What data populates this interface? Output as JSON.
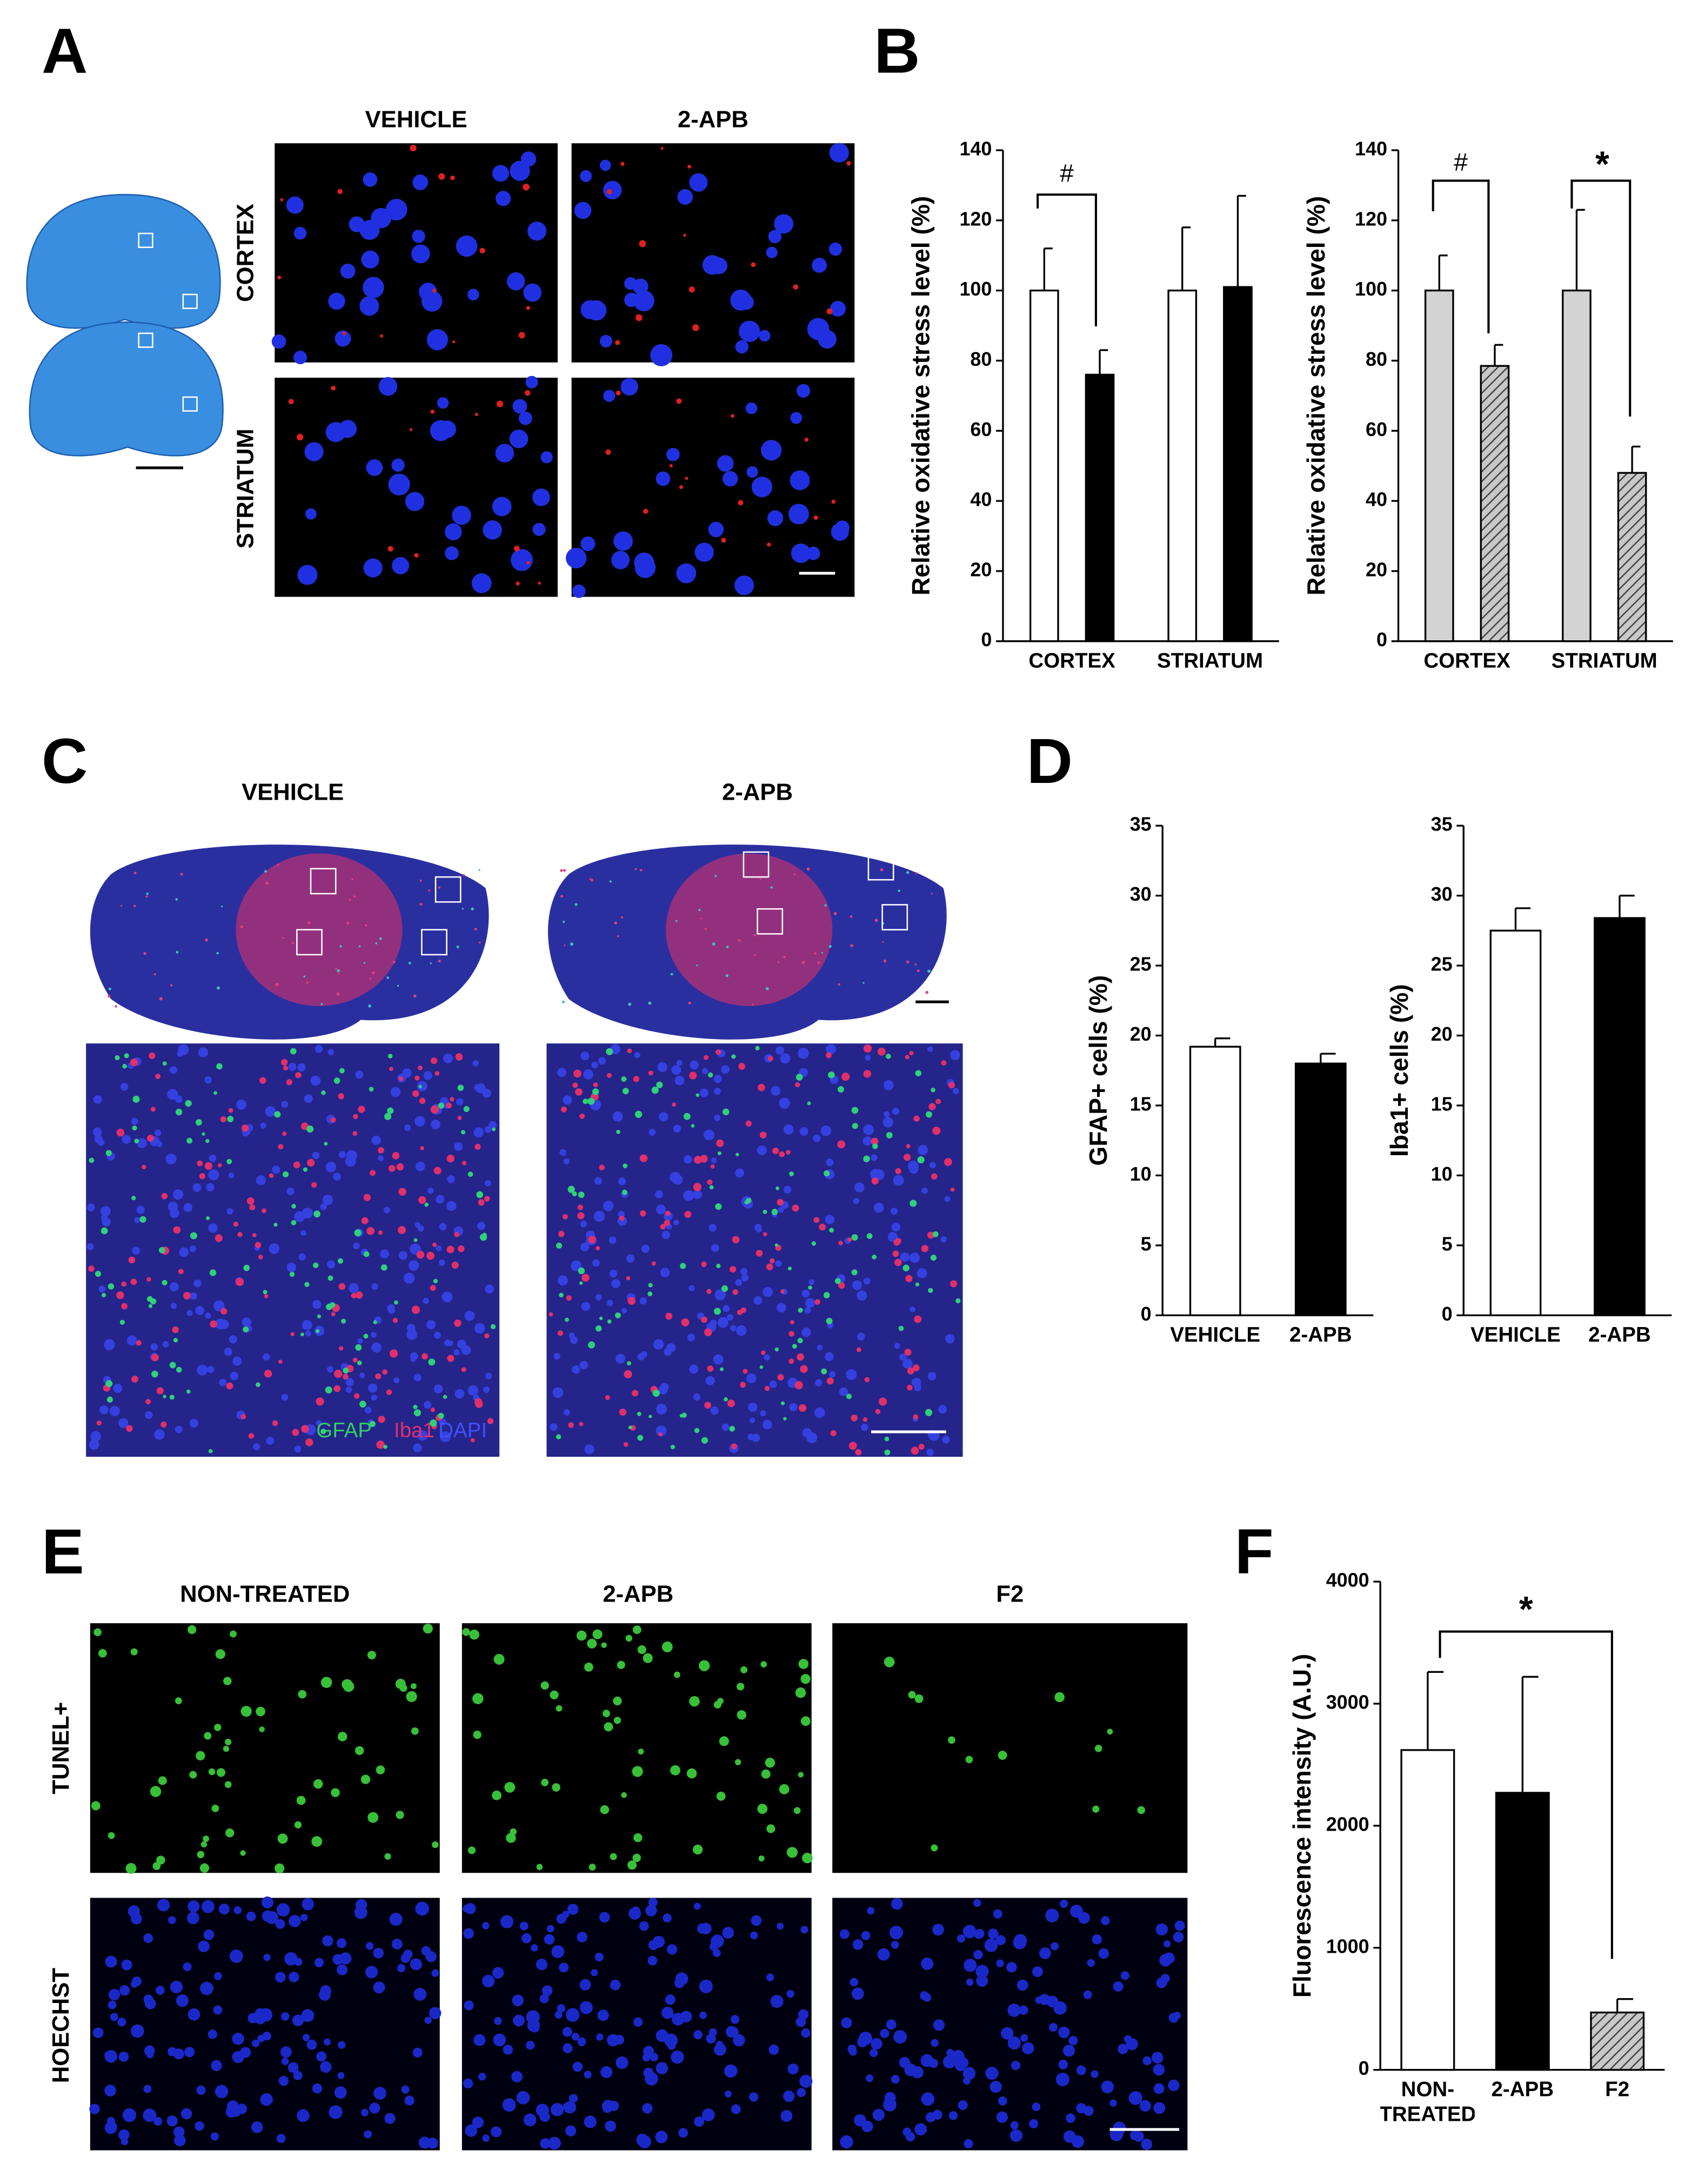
{
  "panels": {
    "labels": [
      "A",
      "B",
      "C",
      "D",
      "E",
      "F"
    ],
    "a": {
      "columns": [
        "VEHICLE",
        "2-APB"
      ],
      "rows": [
        "CORTEX",
        "STRIATUM"
      ]
    },
    "c": {
      "columns": [
        "VEHICLE",
        "2-APB"
      ],
      "stain": [
        "GFAP",
        "Iba1",
        "DAPI"
      ]
    },
    "e": {
      "columns": [
        "NON-TREATED",
        "2-APB",
        "F2"
      ],
      "rows": [
        "TUNEL+",
        "HOECHST"
      ]
    }
  },
  "chart_data": [
    {
      "type": "bar",
      "y_label": "Relative oxidative stress level (%)",
      "categories": [
        "CORTEX",
        "STRIATUM"
      ],
      "series": [
        {
          "color": "#ffffff",
          "hatched": false,
          "values": [
            100,
            100
          ],
          "errors": [
            12,
            18
          ]
        },
        {
          "color": "#000000",
          "hatched": false,
          "values": [
            76,
            101
          ],
          "errors": [
            7,
            26
          ]
        }
      ],
      "ylim": [
        0,
        140
      ],
      "yticks": [
        0,
        20,
        40,
        60,
        80,
        100,
        120,
        140
      ],
      "annotations": [
        "#"
      ]
    },
    {
      "type": "bar",
      "y_label": "Relative oxidative stress level (%)",
      "categories": [
        "CORTEX",
        "STRIATUM"
      ],
      "series": [
        {
          "color": "#d3d3d3",
          "hatched": false,
          "values": [
            100,
            100
          ],
          "errors": [
            10,
            23
          ]
        },
        {
          "color": "#a0a0a0",
          "hatched": true,
          "values": [
            78.5,
            48
          ],
          "errors": [
            6,
            7.5
          ]
        }
      ],
      "ylim": [
        0,
        140
      ],
      "yticks": [
        0,
        20,
        40,
        60,
        80,
        100,
        120,
        140
      ],
      "annotations": [
        "#",
        "*"
      ]
    },
    {
      "type": "bar",
      "y_label": "GFAP+ cells (%)",
      "categories": [
        "VEHICLE",
        "2-APB"
      ],
      "values": [
        19.2,
        18
      ],
      "errors": [
        0.6,
        0.7
      ],
      "colors": [
        "#ffffff",
        "#000000"
      ],
      "hatched": [
        false,
        false
      ],
      "ylim": [
        0,
        35
      ],
      "yticks": [
        0,
        5,
        10,
        15,
        20,
        25,
        30,
        35
      ]
    },
    {
      "type": "bar",
      "y_label": "Iba1+ cells (%)",
      "categories": [
        "VEHICLE",
        "2-APB"
      ],
      "values": [
        27.5,
        28.4
      ],
      "errors": [
        1.6,
        1.6
      ],
      "colors": [
        "#ffffff",
        "#000000"
      ],
      "hatched": [
        false,
        false
      ],
      "ylim": [
        0,
        35
      ],
      "yticks": [
        0,
        5,
        10,
        15,
        20,
        25,
        30,
        35
      ]
    },
    {
      "type": "bar",
      "y_label": "Fluorescence intensity (A.U.)",
      "categories": [
        "NON-TREATED",
        "2-APB",
        "F2"
      ],
      "values": [
        2620,
        2270,
        470
      ],
      "errors": [
        640,
        950,
        110
      ],
      "colors": [
        "#ffffff",
        "#000000",
        "#a0a0a0"
      ],
      "hatched": [
        false,
        false,
        true
      ],
      "ylim": [
        0,
        4000
      ],
      "yticks": [
        0,
        1000,
        2000,
        3000,
        4000
      ],
      "annotations": [
        "*"
      ]
    }
  ]
}
